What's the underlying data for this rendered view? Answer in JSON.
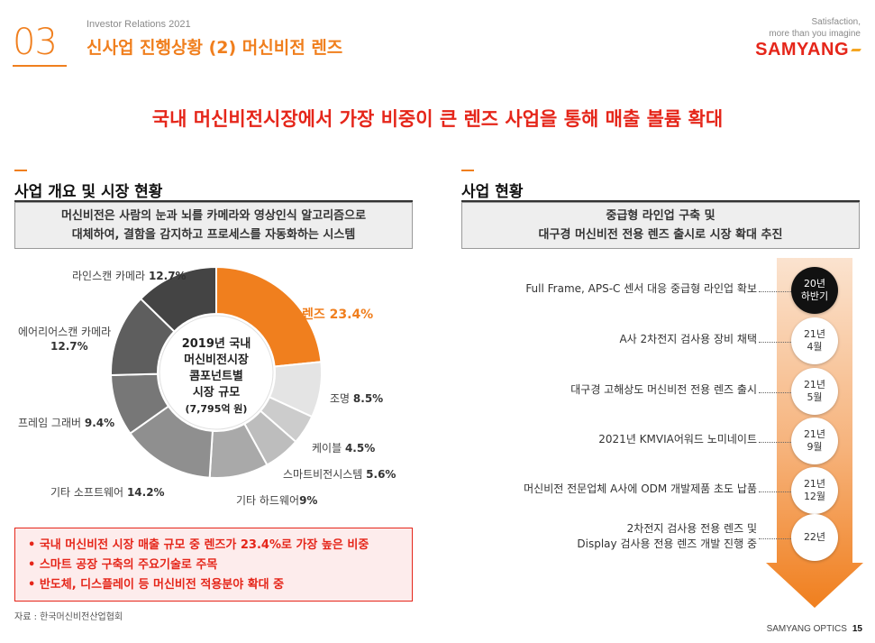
{
  "header": {
    "number": "03",
    "subtitle": "Investor Relations 2021",
    "title": "신사업 진행상황 (2) 머신비전 렌즈",
    "brand_tagline": "Satisfaction,\nmore than you imagine",
    "brand_logo": "SAMYANG"
  },
  "headline": "국내 머신비전시장에서 가장 비중이 큰 렌즈 사업을 통해 매출 볼륨 확대",
  "left": {
    "section_title": "사업 개요 및 시장 현황",
    "definition_line1": "머신비전은 사람의 눈과 뇌를 카메라와 영상인식 알고리즘으로",
    "definition_line2": "대체하여, 결함을 감지하고 프로세스를 자동화하는 시스템",
    "center_line1": "2019년 국내",
    "center_line2": "머신비전시장",
    "center_line3": "콤포넌트별",
    "center_line4": "시장 규모",
    "center_line5": "(7,795억 원)",
    "bullets": [
      "• 국내 머신비전 시장 매출 규모 중 렌즈가 23.4%로 가장 높은 비중",
      "• 스마트 공장 구축의 주요기술로 주목",
      "• 반도체, 디스플레이 등 머신비전 적용분야 확대 중"
    ],
    "source": "자료 : 한국머신비전산업협회"
  },
  "chart_data": {
    "type": "pie",
    "title": "2019년 국내 머신비전시장 콤포넌트별 시장 규모",
    "subtitle": "(7,795억 원)",
    "categories": [
      "렌즈",
      "조명",
      "케이블",
      "스마트비전시스템",
      "기타 하드웨어",
      "기타 소프트웨어",
      "프레임 그래버",
      "에어리어스캔 카메라",
      "라인스캔 카메라"
    ],
    "values": [
      23.4,
      8.5,
      4.5,
      5.6,
      9.0,
      14.2,
      9.4,
      12.7,
      12.7
    ],
    "value_labels": [
      "23.4%",
      "8.5%",
      "4.5%",
      "5.6%",
      "9%",
      "14.2%",
      "9.4%",
      "12.7%",
      "12.7%"
    ],
    "colors": [
      "#f07f1e",
      "#e4e4e4",
      "#cccccc",
      "#bdbdbd",
      "#a9a9a9",
      "#8f8f8f",
      "#777777",
      "#5e5e5e",
      "#444444"
    ],
    "donut": true
  },
  "right": {
    "section_title": "사업 현황",
    "summary_line1": "중급형 라인업 구축 및",
    "summary_line2": "대구경 머신비전 전용 렌즈 출시로 시장 확대 추진",
    "timeline": [
      {
        "text": "Full Frame, APS-C 센서 대응 중급형 라인업 확보",
        "date": "20년\n하반기"
      },
      {
        "text": "A사 2차전지 검사용 장비 채택",
        "date": "21년\n4월"
      },
      {
        "text": "대구경 고해상도 머신비전 전용 렌즈 출시",
        "date": "21년\n5월"
      },
      {
        "text": "2021년 KMVIA어워드 노미네이트",
        "date": "21년\n9월"
      },
      {
        "text": "머신비전 전문업체 A사에 ODM 개발제품 초도 납품",
        "date": "21년\n12월"
      },
      {
        "text": "2차전지 검사용 전용 렌즈 및\nDisplay 검사용 전용 렌즈 개발 진행 중",
        "date": "22년"
      }
    ]
  },
  "footer": {
    "company": "SAMYANG OPTICS",
    "page": "15"
  }
}
